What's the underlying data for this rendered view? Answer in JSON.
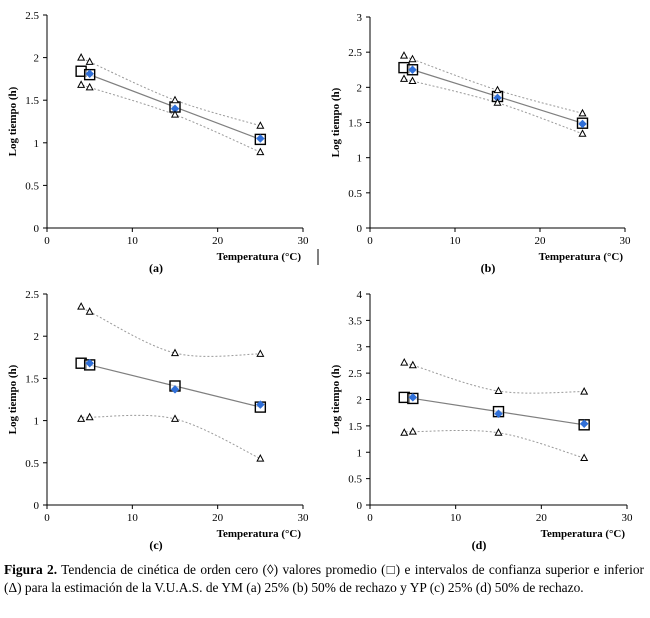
{
  "chart_data": [
    {
      "type": "scatter",
      "panel_label": "(a)",
      "xlabel": "Temperatura (°C)",
      "ylabel": "Log tiempo (h)",
      "xlim": [
        0,
        30
      ],
      "ylim": [
        0,
        2.5
      ],
      "xticks": [
        "0",
        "10",
        "20",
        "30"
      ],
      "yticks": [
        "0",
        "0.5",
        "1",
        "1.5",
        "2",
        "2.5"
      ],
      "grid": false,
      "series": [
        {
          "marker": "square",
          "x": [
            4,
            5,
            15,
            25
          ],
          "y": [
            1.84,
            1.8,
            1.42,
            1.04
          ]
        },
        {
          "marker": "diamond",
          "x": [
            5,
            15,
            25
          ],
          "y": [
            1.81,
            1.4,
            1.05
          ]
        },
        {
          "marker": "triangle",
          "x": [
            4,
            5,
            15,
            25
          ],
          "y": [
            2.0,
            1.95,
            1.5,
            1.2
          ]
        },
        {
          "marker": "triangle",
          "x": [
            4,
            5,
            15,
            25
          ],
          "y": [
            1.68,
            1.65,
            1.33,
            0.89
          ]
        }
      ],
      "trend": {
        "x": [
          5,
          15,
          25
        ],
        "y": [
          1.8,
          1.42,
          1.04
        ]
      }
    },
    {
      "type": "scatter",
      "panel_label": "(b)",
      "xlabel": "Temperatura (°C)",
      "ylabel": "Log tiempo (h)",
      "xlim": [
        0,
        30
      ],
      "ylim": [
        0,
        3
      ],
      "xticks": [
        "0",
        "10",
        "20",
        "30"
      ],
      "yticks": [
        "0",
        "0.5",
        "1",
        "1.5",
        "2",
        "2.5",
        "3"
      ],
      "grid": false,
      "series": [
        {
          "marker": "square",
          "x": [
            4,
            5,
            15,
            25
          ],
          "y": [
            2.28,
            2.25,
            1.87,
            1.49
          ]
        },
        {
          "marker": "diamond",
          "x": [
            5,
            15,
            25
          ],
          "y": [
            2.25,
            1.85,
            1.48
          ]
        },
        {
          "marker": "triangle",
          "x": [
            4,
            5,
            15,
            25
          ],
          "y": [
            2.45,
            2.4,
            1.96,
            1.63
          ]
        },
        {
          "marker": "triangle",
          "x": [
            4,
            5,
            15,
            25
          ],
          "y": [
            2.12,
            2.09,
            1.78,
            1.34
          ]
        }
      ],
      "trend": {
        "x": [
          5,
          15,
          25
        ],
        "y": [
          2.25,
          1.87,
          1.49
        ]
      }
    },
    {
      "type": "scatter",
      "panel_label": "(c)",
      "xlabel": "Temperatura (°C)",
      "ylabel": "Log tiempo (h)",
      "xlim": [
        0,
        30
      ],
      "ylim": [
        0,
        2.5
      ],
      "xticks": [
        "0",
        "10",
        "20",
        "30"
      ],
      "yticks": [
        "0",
        "0.5",
        "1",
        "1.5",
        "2",
        "2.5"
      ],
      "grid": false,
      "series": [
        {
          "marker": "square",
          "x": [
            4,
            5,
            15,
            25
          ],
          "y": [
            1.68,
            1.66,
            1.41,
            1.16
          ]
        },
        {
          "marker": "diamond",
          "x": [
            5,
            15,
            25
          ],
          "y": [
            1.68,
            1.37,
            1.19
          ]
        },
        {
          "marker": "triangle",
          "x": [
            4,
            5,
            15,
            25
          ],
          "y": [
            2.35,
            2.29,
            1.8,
            1.79
          ]
        },
        {
          "marker": "triangle",
          "x": [
            4,
            5,
            15,
            25
          ],
          "y": [
            1.02,
            1.04,
            1.02,
            0.55
          ]
        }
      ],
      "trend": {
        "x": [
          5,
          15,
          25
        ],
        "y": [
          1.66,
          1.41,
          1.16
        ]
      }
    },
    {
      "type": "scatter",
      "panel_label": "(d)",
      "xlabel": "Temperatura (°C)",
      "ylabel": "Log tiempo (h)",
      "xlim": [
        0,
        30
      ],
      "ylim": [
        0,
        4
      ],
      "xticks": [
        "0",
        "10",
        "20",
        "30"
      ],
      "yticks": [
        "0",
        "0.5",
        "1",
        "1.5",
        "2",
        "2.5",
        "3",
        "3.5",
        "4"
      ],
      "grid": false,
      "series": [
        {
          "marker": "square",
          "x": [
            4,
            5,
            15,
            25
          ],
          "y": [
            2.04,
            2.02,
            1.77,
            1.52
          ]
        },
        {
          "marker": "diamond",
          "x": [
            5,
            15,
            25
          ],
          "y": [
            2.04,
            1.73,
            1.54
          ]
        },
        {
          "marker": "triangle",
          "x": [
            4,
            5,
            15,
            25
          ],
          "y": [
            2.7,
            2.65,
            2.16,
            2.15
          ]
        },
        {
          "marker": "triangle",
          "x": [
            4,
            5,
            15,
            25
          ],
          "y": [
            1.37,
            1.39,
            1.37,
            0.89
          ]
        }
      ],
      "trend": {
        "x": [
          5,
          15,
          25
        ],
        "y": [
          2.02,
          1.77,
          1.52
        ]
      }
    }
  ],
  "caption": {
    "label": "Figura 2.",
    "text": " Tendencia de cinética de orden cero (◊) valores promedio (□) e intervalos de confianza superior e inferior (Δ) para la estimación de la V.U.A.S. de YM (a) 25% (b) 50% de rechazo y YP (c) 25% (d) 50% de rechazo."
  },
  "colors": {
    "axis": "#000000",
    "trend": "#7f7f7f",
    "ci": "#9a9a9a",
    "diamond": "#2f6fd8"
  }
}
